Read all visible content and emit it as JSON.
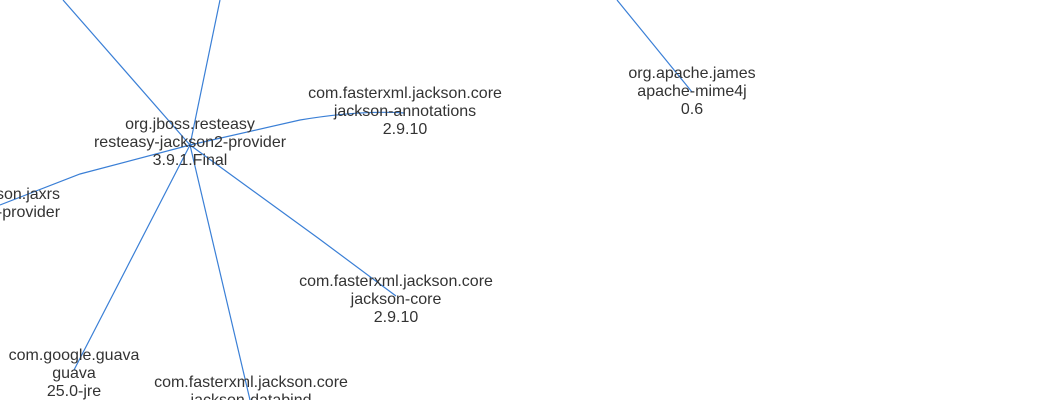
{
  "nodes": {
    "resteasy": {
      "group": "org.jboss.resteasy",
      "artifact": "resteasy-jackson2-provider",
      "version": "3.9.1.Final"
    },
    "annotations": {
      "group": "com.fasterxml.jackson.core",
      "artifact": "jackson-annotations",
      "version": "2.9.10"
    },
    "mime4j": {
      "group": "org.apache.james",
      "artifact": "apache-mime4j",
      "version": "0.6"
    },
    "jaxrs": {
      "group": "ckson.jaxrs",
      "artifact": "n-provider"
    },
    "core": {
      "group": "com.fasterxml.jackson.core",
      "artifact": "jackson-core",
      "version": "2.9.10"
    },
    "guava": {
      "group": "com.google.guava",
      "artifact": "guava",
      "version": "25.0-jre"
    },
    "databind": {
      "group": "com.fasterxml.jackson.core",
      "artifact": "jackson-databind"
    }
  },
  "colors": {
    "edge": "#3a7fd6",
    "text": "#333333",
    "background": "#ffffff"
  }
}
